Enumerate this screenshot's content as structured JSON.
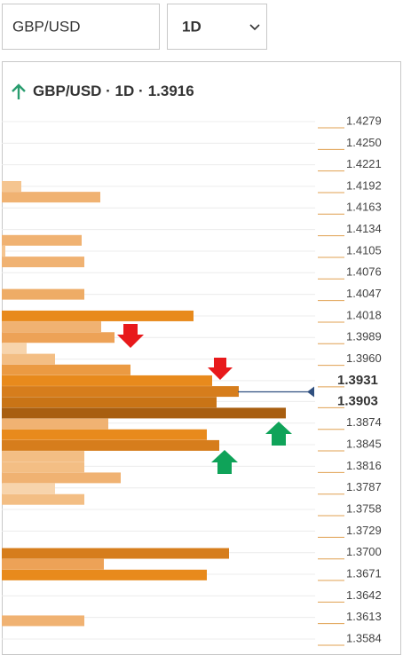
{
  "controls": {
    "symbol_input": "GBP/USD",
    "timeframe_select": "1D"
  },
  "chart_data": {
    "type": "bar",
    "orientation": "horizontal",
    "title": "GBP/USD · 1D ·",
    "current_price": 1.3916,
    "current_price_color": "#2f4f7f",
    "y": [
      1.4192,
      1.41775,
      1.41195,
      1.4105,
      1.40905,
      1.4047,
      1.4018,
      1.40035,
      1.3989,
      1.39745,
      1.396,
      1.39455,
      1.3931,
      1.39165,
      1.3902,
      1.38875,
      1.3873,
      1.38585,
      1.3844,
      1.38295,
      1.3815,
      1.38005,
      1.3786,
      1.37715,
      1.3699,
      1.36845,
      1.367,
      1.36085
    ],
    "values": [
      22,
      111,
      90,
      4,
      93,
      93,
      216,
      112,
      127,
      28,
      60,
      145,
      237,
      267,
      242,
      320,
      120,
      231,
      245,
      93,
      93,
      134,
      60,
      93,
      256,
      115,
      231,
      93
    ],
    "colors": [
      "#f5c590",
      "#f0b272",
      "#f0b272",
      "#f5c590",
      "#f0b272",
      "#eeac66",
      "#e88a1c",
      "#f0b272",
      "#eda257",
      "#f7d4ac",
      "#f3be84",
      "#eb9a42",
      "#e88a1c",
      "#d67d1c",
      "#c97416",
      "#a85e10",
      "#f0b272",
      "#e88a1c",
      "#d67d1c",
      "#f3be84",
      "#f3be84",
      "#f0b272",
      "#f7d4ac",
      "#f3be84",
      "#d67d1c",
      "#eda257",
      "#e88a1c",
      "#f0b272"
    ],
    "xlim": [
      0,
      353
    ],
    "ylim": [
      1.3584,
      1.4279
    ],
    "yticks": [
      1.4279,
      1.425,
      1.4221,
      1.4192,
      1.4163,
      1.4134,
      1.4105,
      1.4076,
      1.4047,
      1.4018,
      1.3989,
      1.396,
      1.3931,
      1.3903,
      1.3874,
      1.3845,
      1.3816,
      1.3787,
      1.3758,
      1.3729,
      1.37,
      1.3671,
      1.3642,
      1.3613,
      1.3584
    ],
    "ytick_labels": [
      "1.4279",
      "1.4250",
      "1.4221",
      "1.4192",
      "1.4163",
      "1.4134",
      "1.4105",
      "1.4076",
      "1.4047",
      "1.4018",
      "1.3989",
      "1.3960",
      "1.3931",
      "1.3903",
      "1.3874",
      "1.3845",
      "1.3816",
      "1.3787",
      "1.3758",
      "1.3729",
      "1.3700",
      "1.3671",
      "1.3642",
      "1.3613",
      "1.3584"
    ],
    "bold_yticks": [
      1.3931,
      1.3903
    ],
    "grid": true
  }
}
